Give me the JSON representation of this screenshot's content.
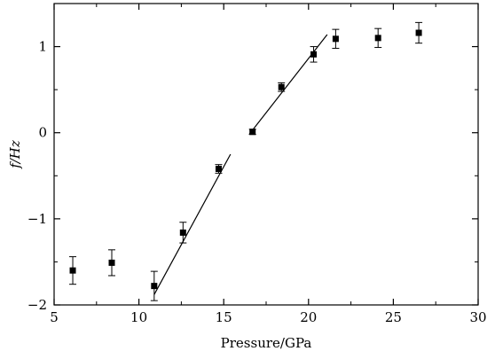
{
  "chart_data": {
    "type": "scatter",
    "xlabel": "Pressure/GPa",
    "ylabel": "f/Hz",
    "xlim": [
      5,
      30
    ],
    "ylim": [
      -2,
      1.5
    ],
    "grid": false,
    "x_ticks": [
      "5",
      "10",
      "15",
      "20",
      "25",
      "30"
    ],
    "y_ticks": [
      "−2",
      "−1",
      "0",
      "1"
    ],
    "series": [
      {
        "points": [
          {
            "x": 6.1,
            "y": -1.6,
            "err": 0.16
          },
          {
            "x": 8.4,
            "y": -1.51,
            "err": 0.15
          },
          {
            "x": 10.9,
            "y": -1.78,
            "err": 0.17
          },
          {
            "x": 12.6,
            "y": -1.16,
            "err": 0.12
          },
          {
            "x": 14.7,
            "y": -0.42,
            "err": 0.05
          },
          {
            "x": 16.7,
            "y": 0.01,
            "err": 0.03
          },
          {
            "x": 18.4,
            "y": 0.53,
            "err": 0.05
          },
          {
            "x": 20.3,
            "y": 0.91,
            "err": 0.09
          },
          {
            "x": 21.6,
            "y": 1.09,
            "err": 0.11
          },
          {
            "x": 24.1,
            "y": 1.1,
            "err": 0.11
          },
          {
            "x": 26.5,
            "y": 1.16,
            "err": 0.12
          }
        ]
      }
    ],
    "fit_lines": [
      {
        "x1": 10.9,
        "y1": -1.88,
        "x2": 15.4,
        "y2": -0.25
      },
      {
        "x1": 16.5,
        "y1": -0.02,
        "x2": 21.1,
        "y2": 1.14
      }
    ]
  }
}
